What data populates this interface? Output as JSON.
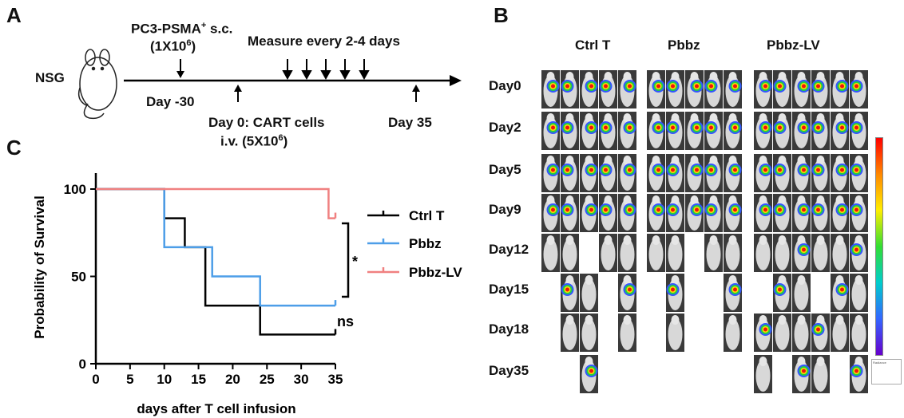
{
  "panel_a": {
    "letter": "A",
    "host": "NSG",
    "tumor_line1": "PC3-PSMA",
    "tumor_sup": "+",
    "tumor_suffix": " s.c.",
    "tumor_line2_pre": "(1X10",
    "tumor_line2_sup": "6",
    "tumor_line2_post": ")",
    "day_minus30": "Day -30",
    "measure": "Measure every 2-4 days",
    "day0_line1": "Day 0: CART cells",
    "day0_line2_pre": "i.v. (5X10",
    "day0_line2_sup": "6",
    "day0_line2_post": ")",
    "day35": "Day 35"
  },
  "panel_b": {
    "letter": "B",
    "groups": [
      "Ctrl T",
      "Pbbz",
      "Pbbz-LV"
    ],
    "days": [
      "Day0",
      "Day2",
      "Day5",
      "Day9",
      "Day12",
      "Day15",
      "Day18",
      "Day35"
    ],
    "colorbar_caption": "Radiance"
  },
  "panel_c": {
    "letter": "C",
    "legend": [
      "Ctrl T",
      "Pbbz",
      "Pbbz-LV"
    ],
    "significance": [
      "*",
      "ns"
    ],
    "colors": {
      "ctrl": "#000000",
      "pbbz": "#4d9ee8",
      "pbbzlv": "#f08080"
    }
  },
  "chart_data": {
    "type": "line",
    "title": "",
    "xlabel": "days after T cell infusion",
    "ylabel": "Probability of Survival",
    "xlim": [
      0,
      35
    ],
    "ylim": [
      0,
      100
    ],
    "xticks": [
      0,
      5,
      10,
      15,
      20,
      25,
      30,
      35
    ],
    "yticks": [
      0,
      50,
      100
    ],
    "step": true,
    "series": [
      {
        "name": "Ctrl T",
        "color": "#000000",
        "x": [
          0,
          10,
          13,
          16,
          24,
          35
        ],
        "y": [
          100,
          83.3,
          66.7,
          33.3,
          16.7,
          16.7
        ]
      },
      {
        "name": "Pbbz",
        "color": "#4d9ee8",
        "x": [
          0,
          10,
          17,
          24,
          35
        ],
        "y": [
          100,
          66.7,
          50,
          33.3,
          33.3
        ]
      },
      {
        "name": "Pbbz-LV",
        "color": "#f08080",
        "x": [
          0,
          34,
          35
        ],
        "y": [
          100,
          83.3,
          83.3
        ]
      }
    ]
  }
}
